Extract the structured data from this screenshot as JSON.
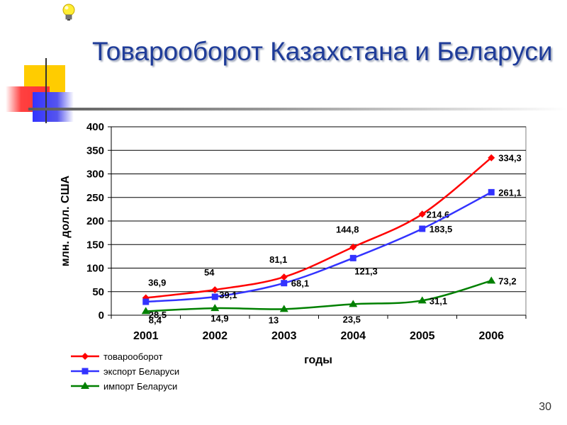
{
  "slide": {
    "title": "Товарооборот Казахстана и Беларуси",
    "page_number": "30",
    "icon": "lightbulb-icon"
  },
  "chart_data": {
    "type": "line",
    "x": [
      "2001",
      "2002",
      "2003",
      "2004",
      "2005",
      "2006"
    ],
    "xlabel": "годы",
    "ylabel": "млн. долл. США",
    "ylim": [
      0,
      400
    ],
    "yticks": [
      "0",
      "50",
      "100",
      "150",
      "200",
      "250",
      "300",
      "350",
      "400"
    ],
    "grid": true,
    "legend_position": "bottom-left",
    "series": [
      {
        "name": "товарооборот",
        "color": "#ff0000",
        "marker": "diamond",
        "values": [
          36.9,
          54,
          81.1,
          144.8,
          214.6,
          334.3
        ],
        "labels": [
          "36,9",
          "54",
          "81,1",
          "144,8",
          "214,6",
          "334,3"
        ]
      },
      {
        "name": "экспорт Беларуси",
        "color": "#3333ff",
        "marker": "square",
        "values": [
          28.5,
          39.1,
          68.1,
          121.3,
          183.5,
          261.1
        ],
        "labels": [
          "28,5",
          "39,1",
          "68,1",
          "121,3",
          "183,5",
          "261,1"
        ]
      },
      {
        "name": "импорт Беларуси",
        "color": "#008000",
        "marker": "triangle",
        "values": [
          8.4,
          14.9,
          13,
          23.5,
          31.1,
          73.2
        ],
        "labels": [
          "8,4",
          "14,9",
          "13",
          "23,5",
          "31,1",
          "73,2"
        ]
      }
    ]
  }
}
